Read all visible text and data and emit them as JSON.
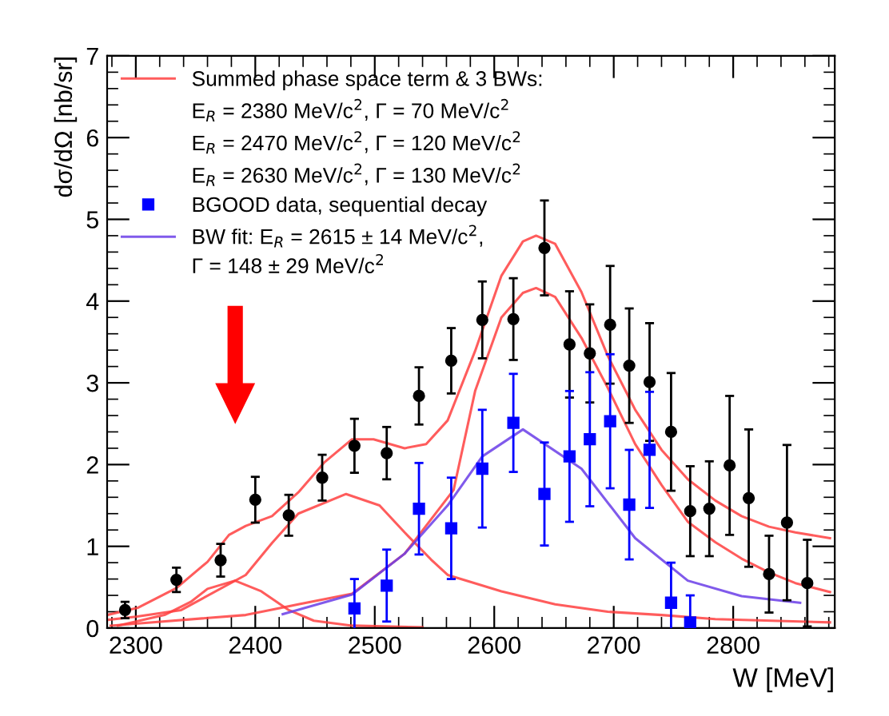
{
  "chart_data": {
    "type": "scatter",
    "xlabel": "W [MeV]",
    "ylabel": "dσ/dΩ [nb/sr]",
    "xlim": [
      2276,
      2885
    ],
    "ylim": [
      0,
      7
    ],
    "xticks": [
      2300,
      2400,
      2500,
      2600,
      2700,
      2800
    ],
    "yticks": [
      0,
      1,
      2,
      3,
      4,
      5,
      6,
      7
    ],
    "grid": false,
    "legend": "top left",
    "annotations": [
      "E$_{R}$ = 2380 MeV/c$^{2}$, Γ = 70 MeV/c$^{2}$",
      "E$_{R}$ = 2470 MeV/c$^{2}$, Γ = 120 MeV/c$^{2}$",
      "E$_{R}$ = 2630 MeV/c$^{2}$, Γ = 130 MeV/c$^{2}$",
      "Γ = 148 ± 29 MeV/c$^{2}$"
    ],
    "series": [
      {
        "name": "Summed phase space term & 3 BWs:",
        "type": "line",
        "color": "#ff4040",
        "x": [
          2276,
          2302,
          2334,
          2360,
          2378,
          2392,
          2414,
          2436,
          2458,
          2481,
          2499,
          2525,
          2543,
          2561,
          2584,
          2606,
          2624,
          2635,
          2651,
          2673,
          2695,
          2718,
          2740,
          2762,
          2785,
          2807,
          2830,
          2852,
          2881
        ],
        "values": [
          0.16,
          0.25,
          0.49,
          0.81,
          1.14,
          1.25,
          1.37,
          1.66,
          2.03,
          2.31,
          2.31,
          2.2,
          2.25,
          2.54,
          3.39,
          4.31,
          4.73,
          4.8,
          4.7,
          4.11,
          3.33,
          2.67,
          2.18,
          1.82,
          1.56,
          1.37,
          1.24,
          1.17,
          1.1
        ]
      },
      {
        "type": "line",
        "color": "#ff4040",
        "x": [
          2279,
          2392,
          2436,
          2481,
          2525,
          2566,
          2584,
          2606,
          2624,
          2635,
          2651,
          2673,
          2695,
          2718,
          2740,
          2762,
          2785,
          2807,
          2830,
          2852,
          2881
        ],
        "values": [
          0.03,
          0.16,
          0.29,
          0.42,
          0.91,
          1.69,
          2.9,
          3.8,
          4.1,
          4.16,
          4.05,
          3.55,
          2.94,
          2.25,
          1.75,
          1.3,
          1.05,
          0.85,
          0.68,
          0.55,
          0.44
        ]
      },
      {
        "type": "line",
        "color": "#ff4040",
        "x": [
          2276,
          2300,
          2338,
          2392,
          2414,
          2436,
          2476,
          2504,
          2525,
          2547,
          2561,
          2606,
          2651,
          2695,
          2740,
          2785,
          2881
        ],
        "values": [
          0.1,
          0.14,
          0.22,
          0.65,
          1.04,
          1.4,
          1.64,
          1.5,
          1.17,
          0.84,
          0.65,
          0.45,
          0.29,
          0.2,
          0.16,
          0.11,
          0.07
        ]
      },
      {
        "type": "line",
        "color": "#ff4040",
        "x": [
          2285,
          2324,
          2346,
          2360,
          2383,
          2405,
          2428,
          2449,
          2481,
          2540
        ],
        "values": [
          0.03,
          0.16,
          0.32,
          0.48,
          0.58,
          0.45,
          0.22,
          0.09,
          0.03,
          0.01
        ]
      },
      {
        "name": "BW fit: E$_{R}$ = 2615 ± 14 MeV/c$^{2}$,",
        "type": "line",
        "color": "#6a3de8",
        "x": [
          2423,
          2481,
          2525,
          2561,
          2590,
          2624,
          2673,
          2718,
          2762,
          2807,
          2856
        ],
        "values": [
          0.17,
          0.41,
          0.91,
          1.5,
          2.1,
          2.43,
          1.95,
          1.1,
          0.58,
          0.39,
          0.31
        ]
      },
      {
        "color": "#000000",
        "marker": "circle",
        "x": [
          2291,
          2334,
          2371,
          2400,
          2428,
          2456,
          2483,
          2510,
          2537,
          2564,
          2590,
          2616,
          2642,
          2663,
          2680,
          2697,
          2713,
          2730,
          2748,
          2764,
          2780,
          2797,
          2813,
          2830,
          2845,
          2862
        ],
        "values": [
          0.22,
          0.59,
          0.83,
          1.57,
          1.38,
          1.84,
          2.23,
          2.14,
          2.84,
          3.27,
          3.77,
          3.78,
          4.65,
          3.47,
          3.36,
          3.71,
          3.21,
          3.01,
          2.4,
          1.43,
          1.46,
          1.99,
          1.59,
          0.66,
          1.29,
          0.55
        ],
        "errors": [
          0.1,
          0.15,
          0.2,
          0.28,
          0.25,
          0.28,
          0.33,
          0.32,
          0.35,
          0.4,
          0.47,
          0.5,
          0.58,
          0.65,
          0.6,
          0.72,
          0.7,
          0.72,
          0.72,
          0.55,
          0.58,
          0.85,
          0.84,
          0.47,
          0.95,
          0.53
        ]
      },
      {
        "name": "BGOOD data, sequential decay",
        "color": "#0000ff",
        "marker": "square",
        "x": [
          2483,
          2510,
          2537,
          2564,
          2590,
          2616,
          2642,
          2663,
          2680,
          2697,
          2713,
          2730,
          2748,
          2764
        ],
        "values": [
          0.24,
          0.52,
          1.46,
          1.22,
          1.95,
          2.51,
          1.64,
          2.1,
          2.31,
          2.53,
          1.51,
          2.18,
          0.31,
          0.07
        ],
        "errors": [
          0.36,
          0.44,
          0.56,
          0.62,
          0.72,
          0.6,
          0.63,
          0.8,
          0.82,
          0.82,
          0.67,
          0.71,
          0.49,
          0.33
        ]
      }
    ]
  }
}
